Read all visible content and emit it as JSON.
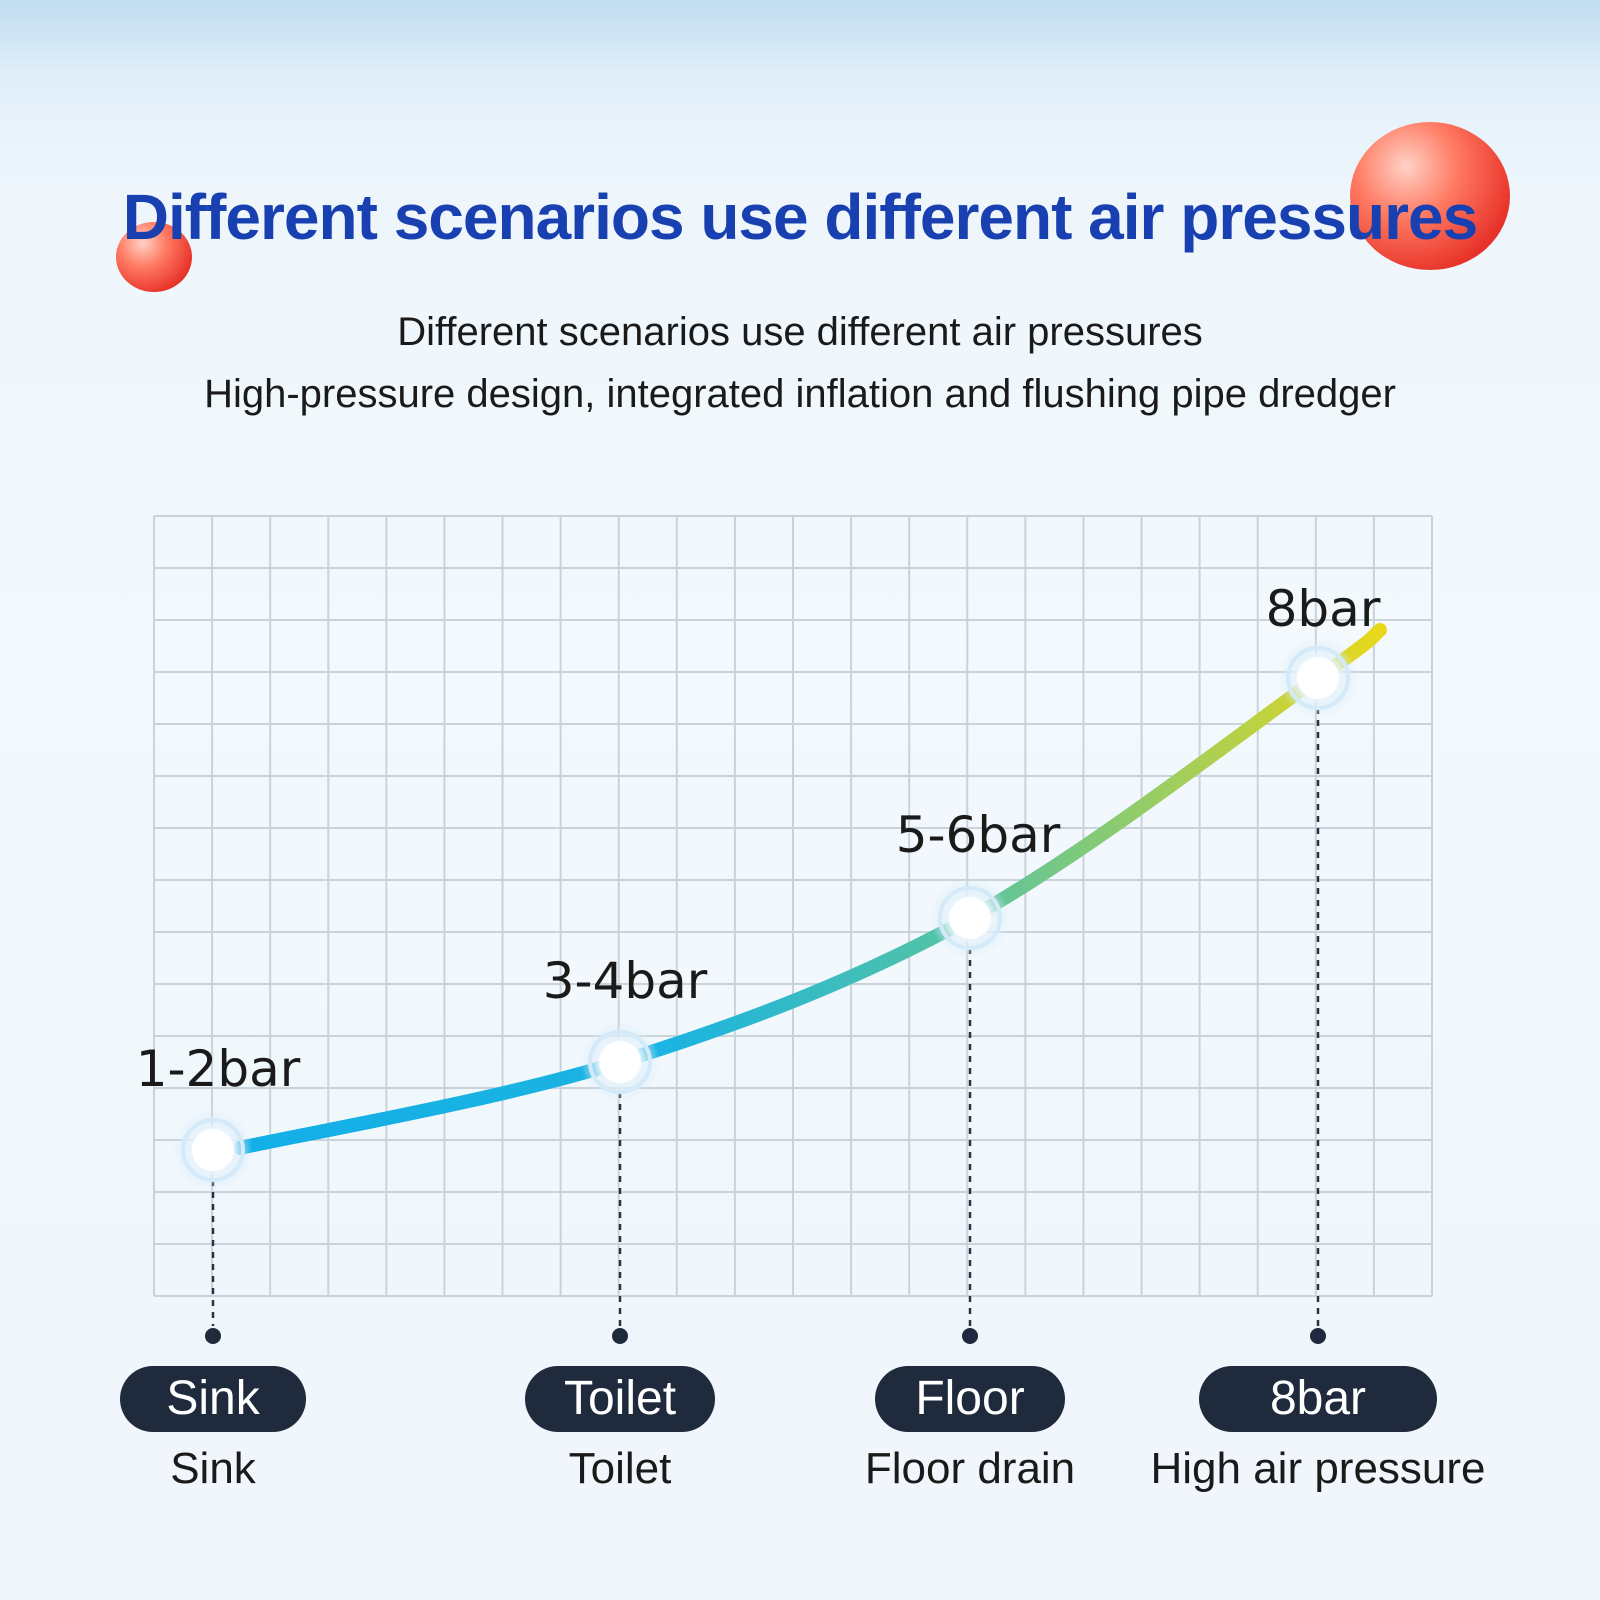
{
  "header": {
    "title": "Different scenarios use different air pressures",
    "subtitle_line1": "Different scenarios use different air pressures",
    "subtitle_line2": "High-pressure design, integrated inflation and flushing pipe dredger"
  },
  "colors": {
    "title": "#1840b0",
    "curve_start": "#12aee8",
    "curve_mid": "#58c4a0",
    "curve_end": "#e8d81a",
    "pill": "#1f2b3d",
    "grid": "#c9d3dc"
  },
  "chart_data": {
    "type": "line",
    "grid": true,
    "points": [
      {
        "label": "1-2bar",
        "value": 1.5,
        "category": "Sink",
        "caption": "Sink"
      },
      {
        "label": "3-4bar",
        "value": 3.5,
        "category": "Toilet",
        "caption": "Toilet"
      },
      {
        "label": "5-6bar",
        "value": 5.5,
        "category": "Floor",
        "caption": "Floor drain"
      },
      {
        "label": "8bar",
        "value": 8,
        "category": "8bar",
        "caption": "High air pressure"
      }
    ]
  }
}
